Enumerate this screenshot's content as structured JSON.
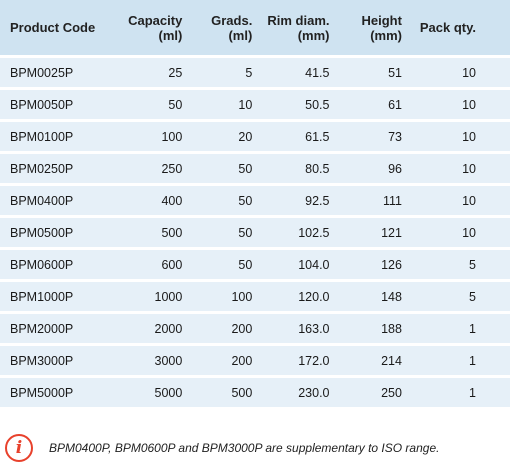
{
  "table": {
    "headers": {
      "code": [
        "Product Code"
      ],
      "capacity": [
        "Capacity",
        "(ml)"
      ],
      "grads": [
        "Grads.",
        "(ml)"
      ],
      "rim": [
        "Rim diam.",
        "(mm)"
      ],
      "height": [
        "Height",
        "(mm)"
      ],
      "pack": [
        "Pack qty."
      ]
    },
    "rows": [
      {
        "code": "BPM0025P",
        "capacity": "25",
        "grads": "5",
        "rim": "41.5",
        "height": "51",
        "pack": "10"
      },
      {
        "code": "BPM0050P",
        "capacity": "50",
        "grads": "10",
        "rim": "50.5",
        "height": "61",
        "pack": "10"
      },
      {
        "code": "BPM0100P",
        "capacity": "100",
        "grads": "20",
        "rim": "61.5",
        "height": "73",
        "pack": "10"
      },
      {
        "code": "BPM0250P",
        "capacity": "250",
        "grads": "50",
        "rim": "80.5",
        "height": "96",
        "pack": "10"
      },
      {
        "code": "BPM0400P",
        "capacity": "400",
        "grads": "50",
        "rim": "92.5",
        "height": "111",
        "pack": "10"
      },
      {
        "code": "BPM0500P",
        "capacity": "500",
        "grads": "50",
        "rim": "102.5",
        "height": "121",
        "pack": "10"
      },
      {
        "code": "BPM0600P",
        "capacity": "600",
        "grads": "50",
        "rim": "104.0",
        "height": "126",
        "pack": "5"
      },
      {
        "code": "BPM1000P",
        "capacity": "1000",
        "grads": "100",
        "rim": "120.0",
        "height": "148",
        "pack": "5"
      },
      {
        "code": "BPM2000P",
        "capacity": "2000",
        "grads": "200",
        "rim": "163.0",
        "height": "188",
        "pack": "1"
      },
      {
        "code": "BPM3000P",
        "capacity": "3000",
        "grads": "200",
        "rim": "172.0",
        "height": "214",
        "pack": "1"
      },
      {
        "code": "BPM5000P",
        "capacity": "5000",
        "grads": "500",
        "rim": "230.0",
        "height": "250",
        "pack": "1"
      }
    ]
  },
  "note": {
    "icon": "info-icon",
    "icon_glyph": "i",
    "accent_color": "#e8412c",
    "text": "BPM0400P, BPM0600P and BPM3000P are supplementary to ISO range."
  },
  "colors": {
    "header_bg": "#cfe3f1",
    "row_bg": "#e6f0f8"
  }
}
